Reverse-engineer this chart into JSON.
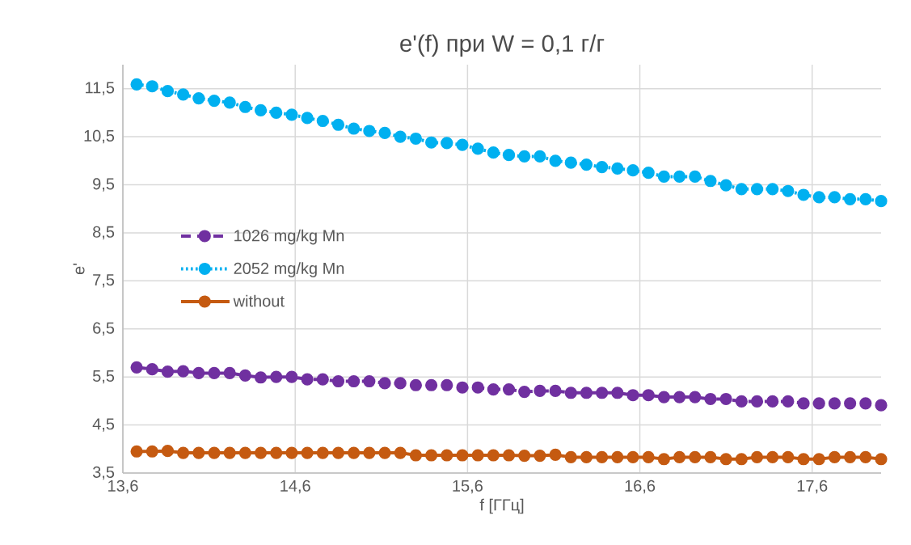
{
  "chart_data": {
    "type": "line",
    "title": "e'(f) при W = 0,1 г/г",
    "xlabel": "f [ГГц]",
    "ylabel": "e'",
    "x": [
      13.68,
      13.77,
      13.86,
      13.95,
      14.04,
      14.13,
      14.22,
      14.31,
      14.4,
      14.49,
      14.58,
      14.67,
      14.76,
      14.85,
      14.94,
      15.03,
      15.12,
      15.21,
      15.3,
      15.39,
      15.48,
      15.57,
      15.66,
      15.75,
      15.84,
      15.93,
      16.02,
      16.11,
      16.2,
      16.29,
      16.38,
      16.47,
      16.56,
      16.65,
      16.74,
      16.83,
      16.92,
      17.01,
      17.1,
      17.19,
      17.28,
      17.37,
      17.46,
      17.55,
      17.64,
      17.73,
      17.82,
      17.91,
      18.0
    ],
    "series": [
      {
        "name": "1026 mg/kg Mn",
        "color": "#7030a0",
        "line_style": "dashed",
        "values": [
          5.7,
          5.66,
          5.61,
          5.62,
          5.58,
          5.58,
          5.58,
          5.53,
          5.49,
          5.5,
          5.5,
          5.45,
          5.45,
          5.41,
          5.41,
          5.41,
          5.37,
          5.37,
          5.33,
          5.33,
          5.33,
          5.28,
          5.28,
          5.24,
          5.24,
          5.19,
          5.21,
          5.21,
          5.17,
          5.17,
          5.17,
          5.17,
          5.12,
          5.12,
          5.08,
          5.08,
          5.08,
          5.04,
          5.04,
          4.99,
          4.99,
          4.99,
          4.99,
          4.95,
          4.95,
          4.95,
          4.95,
          4.95,
          4.91
        ]
      },
      {
        "name": "2052 mg/kg Mn",
        "color": "#00b0f0",
        "line_style": "dotted",
        "values": [
          11.59,
          11.55,
          11.45,
          11.38,
          11.3,
          11.25,
          11.21,
          11.12,
          11.05,
          11.0,
          10.96,
          10.89,
          10.83,
          10.75,
          10.67,
          10.62,
          10.58,
          10.5,
          10.46,
          10.38,
          10.37,
          10.33,
          10.25,
          10.17,
          10.12,
          10.09,
          10.09,
          10.0,
          9.96,
          9.92,
          9.87,
          9.84,
          9.8,
          9.75,
          9.67,
          9.67,
          9.67,
          9.58,
          9.49,
          9.41,
          9.41,
          9.41,
          9.37,
          9.29,
          9.24,
          9.24,
          9.2,
          9.2,
          9.16
        ]
      },
      {
        "name": "without",
        "color": "#c55a11",
        "line_style": "solid",
        "values": [
          3.95,
          3.95,
          3.96,
          3.92,
          3.92,
          3.92,
          3.92,
          3.92,
          3.92,
          3.92,
          3.92,
          3.92,
          3.92,
          3.92,
          3.92,
          3.92,
          3.92,
          3.92,
          3.87,
          3.87,
          3.87,
          3.87,
          3.87,
          3.87,
          3.87,
          3.86,
          3.86,
          3.88,
          3.83,
          3.83,
          3.83,
          3.83,
          3.83,
          3.83,
          3.79,
          3.83,
          3.83,
          3.83,
          3.79,
          3.79,
          3.83,
          3.83,
          3.83,
          3.79,
          3.79,
          3.83,
          3.83,
          3.83,
          3.79
        ]
      }
    ],
    "xlim": [
      13.6,
      18.0
    ],
    "ylim": [
      3.5,
      12.0
    ],
    "xticks": [
      {
        "value": 13.6,
        "label": "13,6"
      },
      {
        "value": 14.6,
        "label": "14,6"
      },
      {
        "value": 15.6,
        "label": "15,6"
      },
      {
        "value": 16.6,
        "label": "16,6"
      },
      {
        "value": 17.6,
        "label": "17,6"
      }
    ],
    "yticks": [
      {
        "value": 3.5,
        "label": "3,5"
      },
      {
        "value": 4.5,
        "label": "4,5"
      },
      {
        "value": 5.5,
        "label": "5,5"
      },
      {
        "value": 6.5,
        "label": "6,5"
      },
      {
        "value": 7.5,
        "label": "7,5"
      },
      {
        "value": 8.5,
        "label": "8,5"
      },
      {
        "value": 9.5,
        "label": "9,5"
      },
      {
        "value": 10.5,
        "label": "10,5"
      },
      {
        "value": 11.5,
        "label": "11,5"
      }
    ],
    "grid": true,
    "legend": "left",
    "marker": "circle"
  }
}
